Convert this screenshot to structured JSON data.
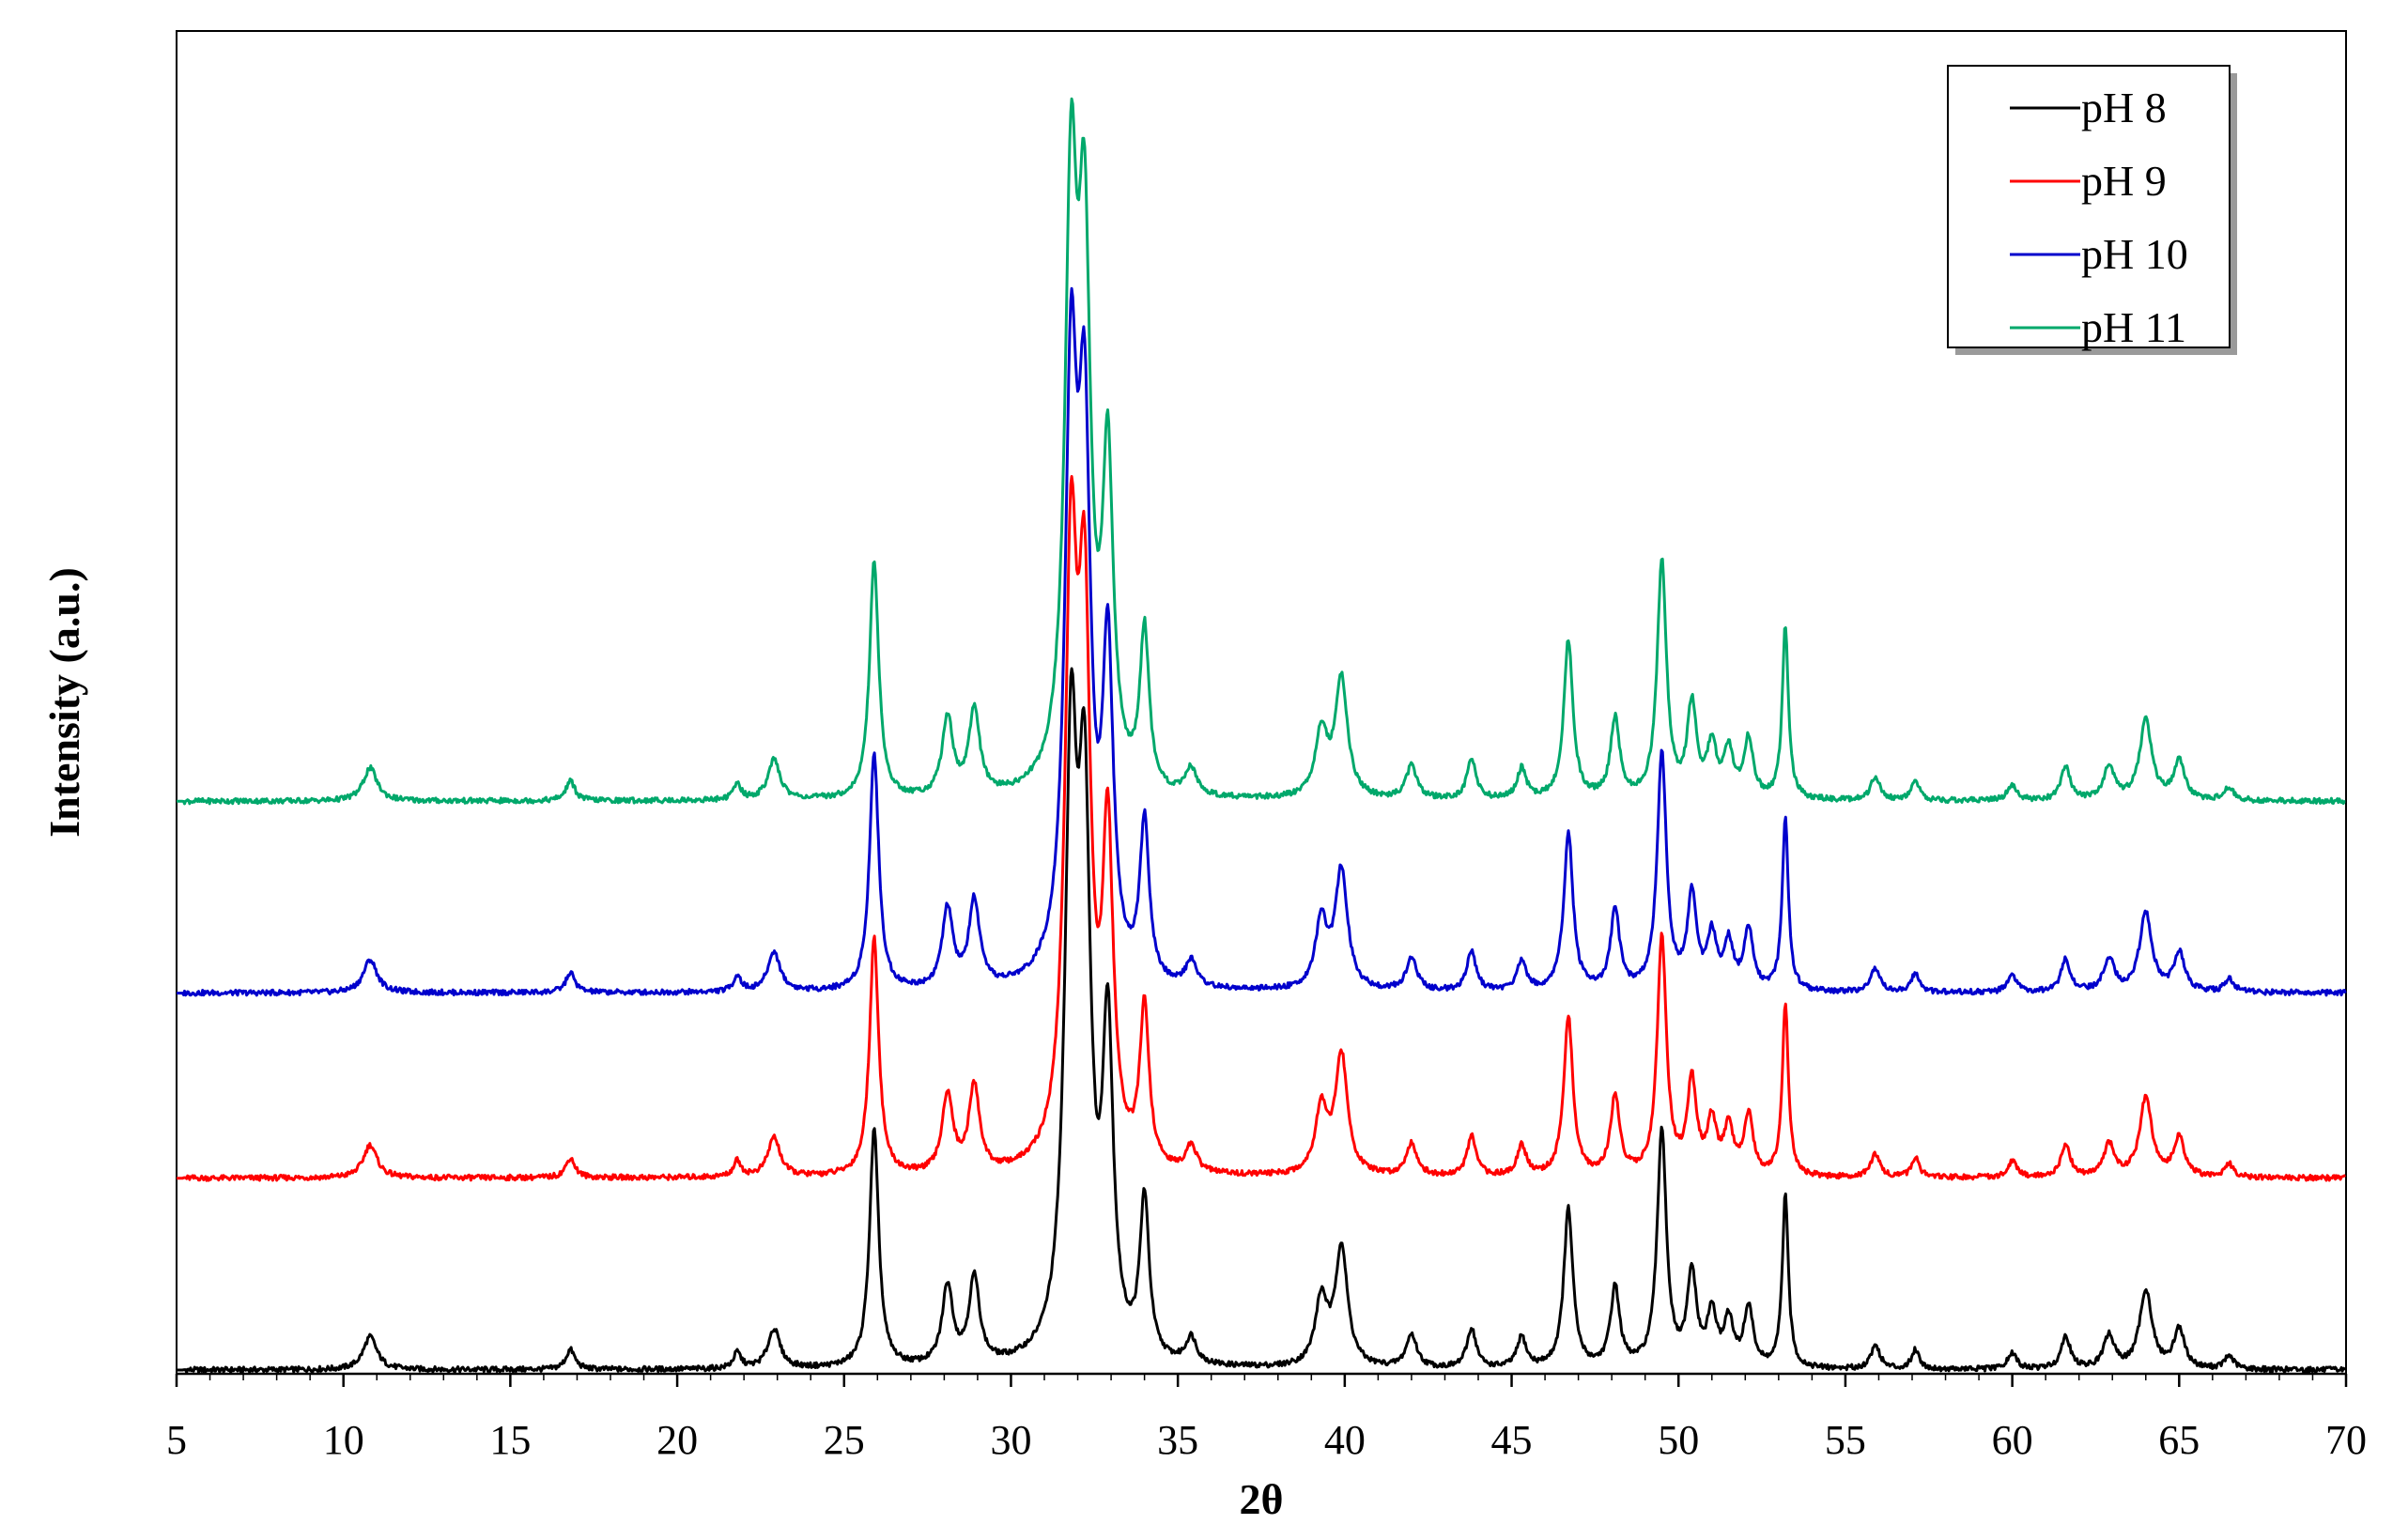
{
  "chart_data": {
    "type": "line",
    "xlabel": "2θ",
    "ylabel": "Intensity (a.u.)",
    "xlim": [
      5,
      70
    ],
    "x_ticks": [
      5,
      10,
      15,
      20,
      25,
      30,
      35,
      40,
      45,
      50,
      55,
      60,
      65,
      70
    ],
    "y_ticks_shown": false,
    "grid": false,
    "legend_position": "top-right",
    "series": [
      {
        "name": "pH 8",
        "color": "#000000",
        "offset": 0,
        "peaks": [
          [
            10.8,
            0.45,
            0.15
          ],
          [
            16.8,
            0.3,
            0.15
          ],
          [
            21.8,
            0.25,
            0.15
          ],
          [
            22.9,
            0.4,
            0.15
          ],
          [
            25.9,
            0.3,
            0.15
          ],
          [
            28.1,
            0.35,
            0.15
          ],
          [
            28.9,
            0.35,
            0.15
          ],
          [
            31.8,
            0.4,
            0.15
          ],
          [
            32.2,
            0.4,
            0.15
          ],
          [
            32.9,
            0.35,
            0.15
          ],
          [
            34.0,
            0.3,
            0.15
          ],
          [
            35.4,
            0.35,
            0.15
          ],
          [
            39.3,
            0.4,
            0.15
          ],
          [
            39.9,
            0.4,
            0.15
          ],
          [
            42.0,
            0.35,
            0.15
          ],
          [
            43.8,
            0.3,
            0.15
          ],
          [
            45.3,
            0.3,
            0.15
          ],
          [
            46.7,
            0.3,
            0.15
          ],
          [
            48.1,
            0.3,
            0.15
          ],
          [
            49.5,
            0.3,
            0.15
          ],
          [
            50.4,
            0.3,
            0.15
          ],
          [
            51.0,
            0.3,
            0.15
          ],
          [
            51.5,
            0.3,
            0.15
          ],
          [
            52.1,
            0.3,
            0.15
          ],
          [
            53.2,
            0.2,
            0.15
          ],
          [
            55.9,
            0.3,
            0.15
          ],
          [
            57.1,
            0.25,
            0.15
          ],
          [
            60.0,
            0.3,
            0.15
          ],
          [
            61.6,
            0.3,
            0.15
          ],
          [
            62.9,
            0.35,
            0.15
          ],
          [
            64.0,
            0.4,
            0.15
          ],
          [
            65.0,
            0.35,
            0.15
          ],
          [
            66.5,
            0.3,
            0.15
          ]
        ],
        "peak_heights": [
          0.025,
          0.015,
          0.012,
          0.03,
          0.18,
          0.06,
          0.065,
          0.43,
          0.38,
          0.24,
          0.12,
          0.02,
          0.05,
          0.09,
          0.025,
          0.03,
          0.023,
          0.12,
          0.06,
          0.18,
          0.07,
          0.04,
          0.035,
          0.045,
          0.13,
          0.018,
          0.015,
          0.012,
          0.025,
          0.025,
          0.06,
          0.03,
          0.01
        ],
        "baseline": 0.0
      },
      {
        "name": "pH 9",
        "color": "#ff0000",
        "offset": 0.145,
        "baseline": 0.0
      },
      {
        "name": "pH 10",
        "color": "#0000cc",
        "offset": 0.285,
        "baseline": 0.0
      },
      {
        "name": "pH 11",
        "color": "#00a86b",
        "offset": 0.43,
        "baseline": 0.0
      }
    ]
  }
}
